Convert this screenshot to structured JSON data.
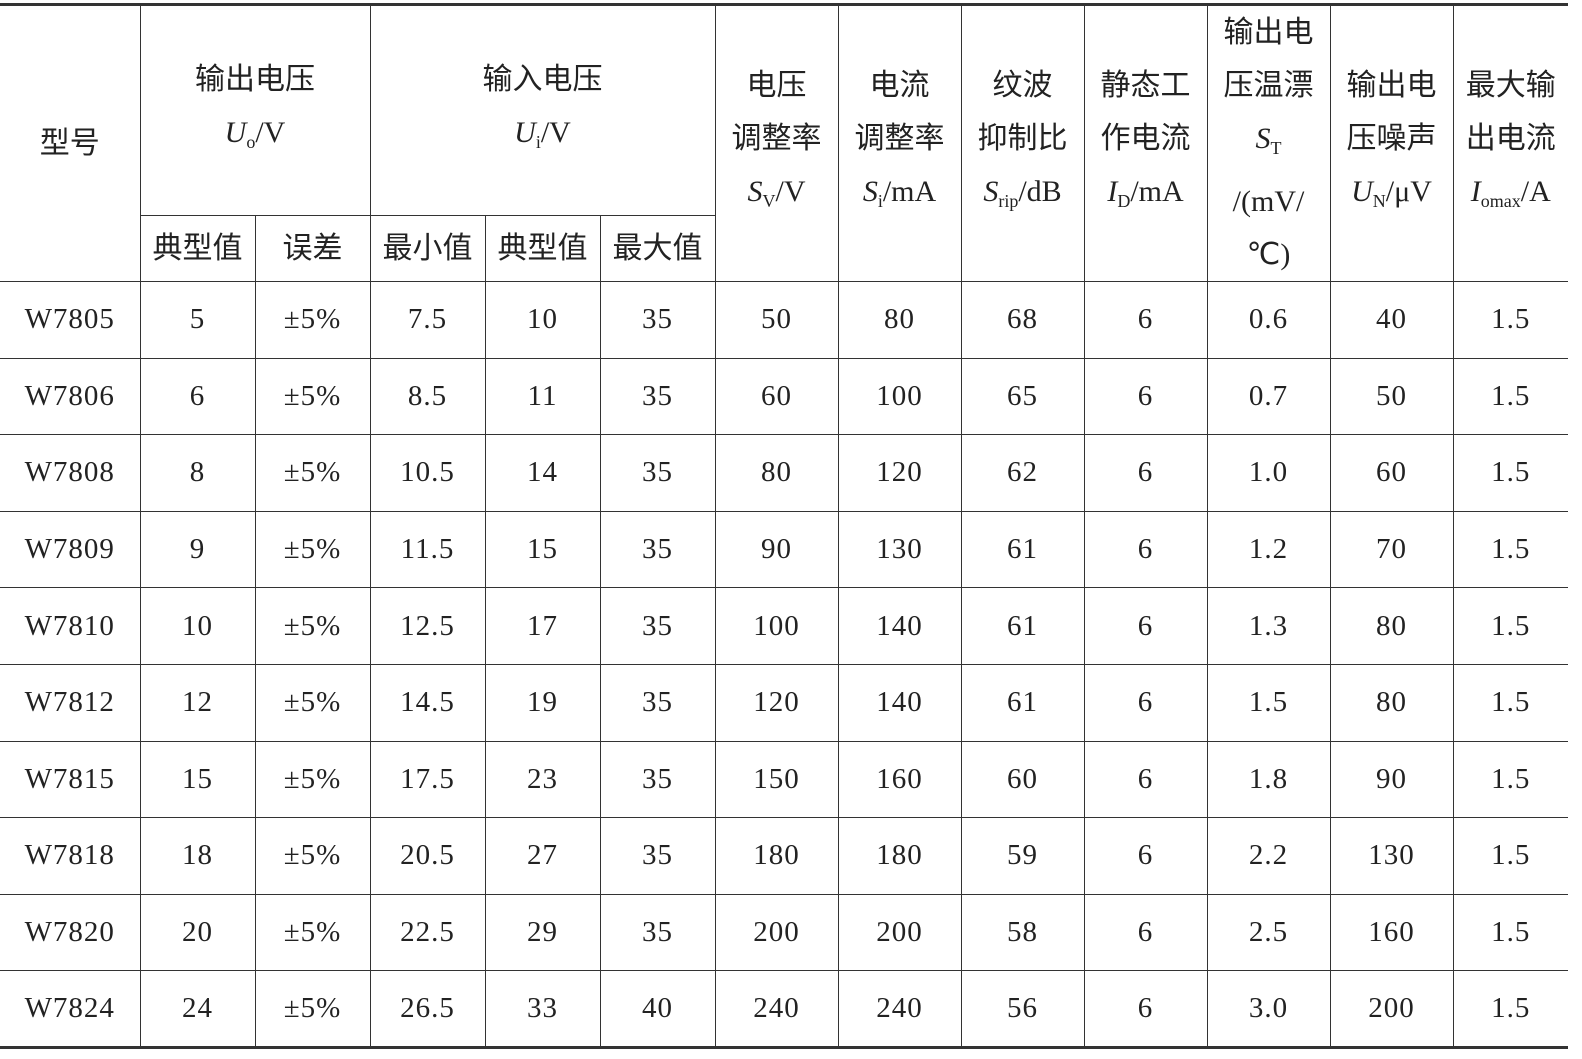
{
  "headers": {
    "model": "型号",
    "output_voltage": {
      "title": "输出电压",
      "symbol": "U",
      "sub": "o",
      "unit": "/V",
      "typical": "典型值",
      "tolerance": "误差"
    },
    "input_voltage": {
      "title": "输入电压",
      "symbol": "U",
      "sub": "i",
      "unit": "/V",
      "min": "最小值",
      "typical": "典型值",
      "max": "最大值"
    },
    "voltage_regulation": {
      "lines": [
        "电压",
        "调整率"
      ],
      "symbol": "S",
      "sub": "V",
      "unit": "/V"
    },
    "current_regulation": {
      "lines": [
        "电流",
        "调整率"
      ],
      "symbol": "S",
      "sub": "i",
      "unit": "/mA"
    },
    "ripple_rejection": {
      "lines": [
        "纹波",
        "抑制比"
      ],
      "symbol": "S",
      "sub": "rip",
      "unit": "/dB"
    },
    "quiescent_current": {
      "lines": [
        "静态工",
        "作电流"
      ],
      "symbol": "I",
      "sub": "D",
      "unit": "/mA"
    },
    "temp_drift": {
      "lines": [
        "输出电",
        "压温漂"
      ],
      "symbol": "S",
      "sub": "T",
      "unit": "/(mV/",
      "unit2": "℃)"
    },
    "output_noise": {
      "lines": [
        "输出电",
        "压噪声"
      ],
      "symbol": "U",
      "sub": "N",
      "unit": "/μV"
    },
    "max_output_current": {
      "lines": [
        "最大输",
        "出电流"
      ],
      "symbol": "I",
      "sub": "omax",
      "unit": "/A"
    }
  },
  "rows": [
    [
      "W7805",
      "5",
      "±5%",
      "7.5",
      "10",
      "35",
      "50",
      "80",
      "68",
      "6",
      "0.6",
      "40",
      "1.5"
    ],
    [
      "W7806",
      "6",
      "±5%",
      "8.5",
      "11",
      "35",
      "60",
      "100",
      "65",
      "6",
      "0.7",
      "50",
      "1.5"
    ],
    [
      "W7808",
      "8",
      "±5%",
      "10.5",
      "14",
      "35",
      "80",
      "120",
      "62",
      "6",
      "1.0",
      "60",
      "1.5"
    ],
    [
      "W7809",
      "9",
      "±5%",
      "11.5",
      "15",
      "35",
      "90",
      "130",
      "61",
      "6",
      "1.2",
      "70",
      "1.5"
    ],
    [
      "W7810",
      "10",
      "±5%",
      "12.5",
      "17",
      "35",
      "100",
      "140",
      "61",
      "6",
      "1.3",
      "80",
      "1.5"
    ],
    [
      "W7812",
      "12",
      "±5%",
      "14.5",
      "19",
      "35",
      "120",
      "140",
      "61",
      "6",
      "1.5",
      "80",
      "1.5"
    ],
    [
      "W7815",
      "15",
      "±5%",
      "17.5",
      "23",
      "35",
      "150",
      "160",
      "60",
      "6",
      "1.8",
      "90",
      "1.5"
    ],
    [
      "W7818",
      "18",
      "±5%",
      "20.5",
      "27",
      "35",
      "180",
      "180",
      "59",
      "6",
      "2.2",
      "130",
      "1.5"
    ],
    [
      "W7820",
      "20",
      "±5%",
      "22.5",
      "29",
      "35",
      "200",
      "200",
      "58",
      "6",
      "2.5",
      "160",
      "1.5"
    ],
    [
      "W7824",
      "24",
      "±5%",
      "26.5",
      "33",
      "40",
      "240",
      "240",
      "56",
      "6",
      "3.0",
      "200",
      "1.5"
    ]
  ]
}
